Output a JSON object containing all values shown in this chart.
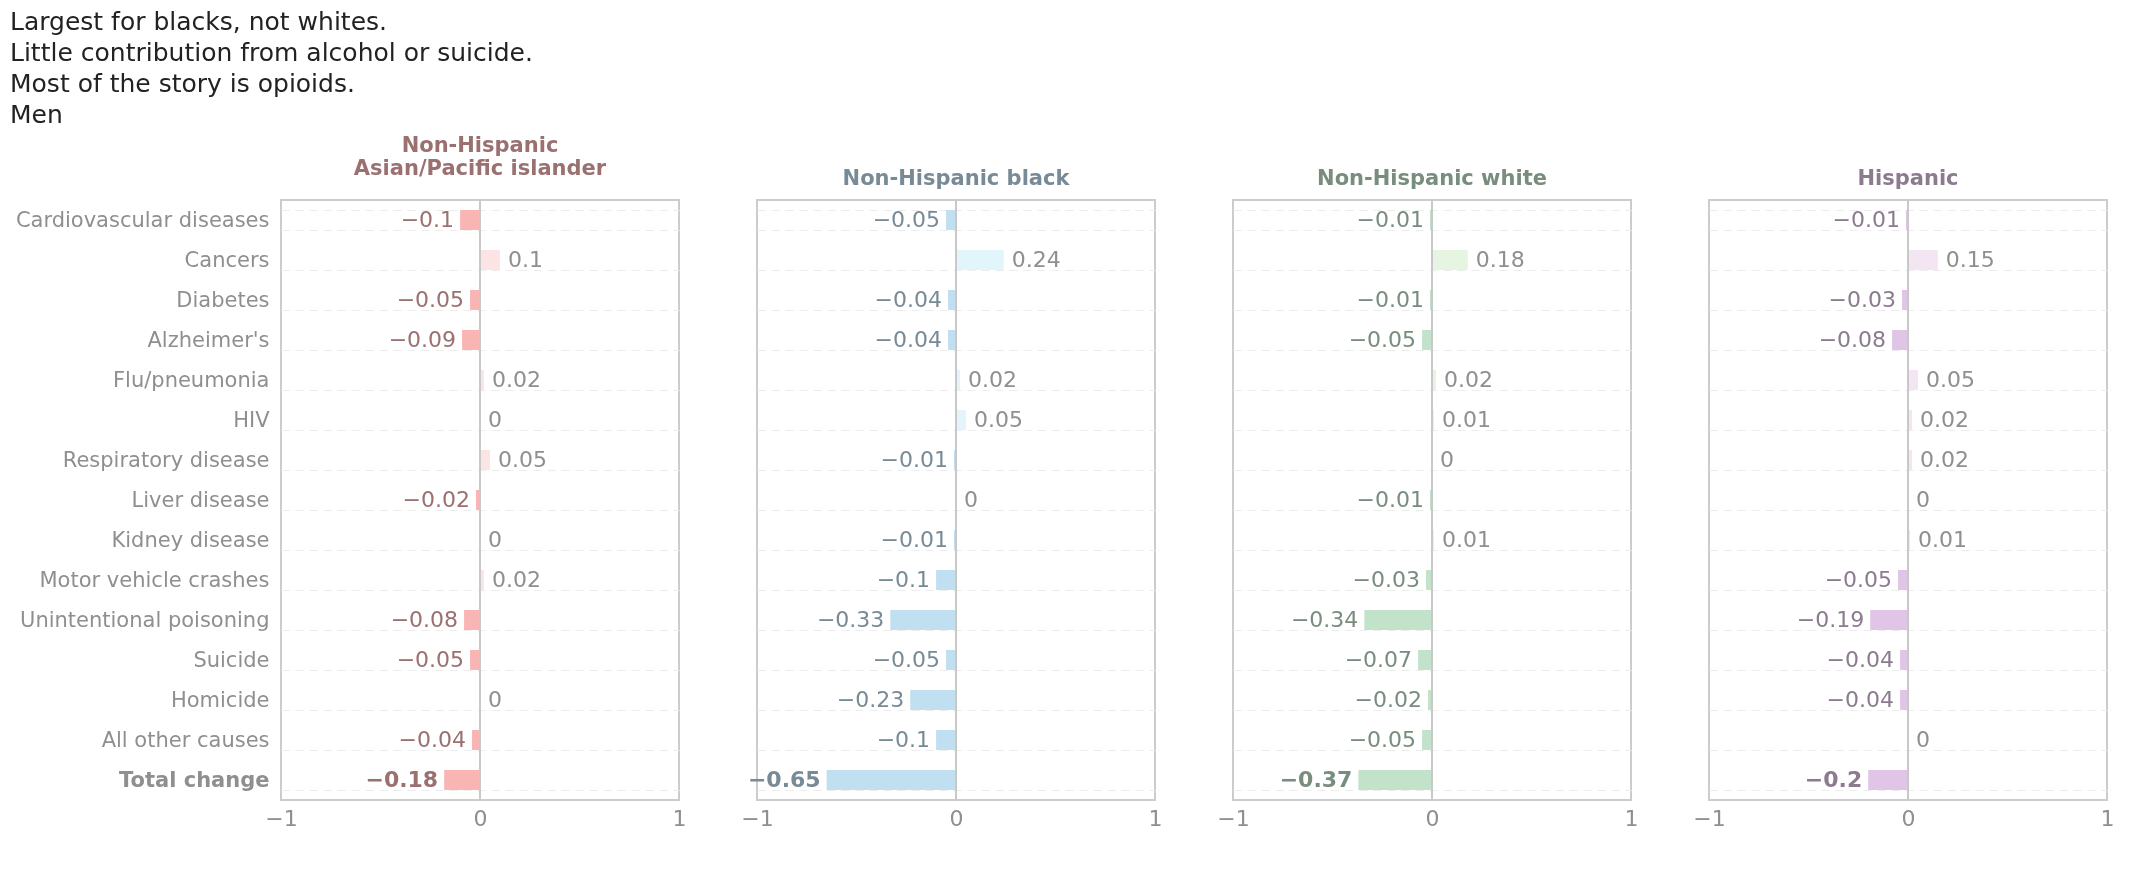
{
  "chart_data": [
    {
      "type": "bar",
      "orientation": "horizontal",
      "title": "Non-Hispanic Asian/Pacific islander",
      "annotations": [
        "Largest for blacks, not whites.",
        "Little contribution from alcohol or suicide.",
        "Most of the story is opioids.",
        "Men"
      ],
      "categories": [
        "Cardiovascular diseases",
        "Cancers",
        "Diabetes",
        "Alzheimer's",
        "Flu/pneumonia",
        "HIV",
        "Respiratory disease",
        "Liver disease",
        "Kidney disease",
        "Motor vehicle crashes",
        "Unintentional poisoning",
        "Suicide",
        "Homicide",
        "All other causes",
        "Total change"
      ],
      "values": [
        -0.1,
        0.1,
        -0.05,
        -0.09,
        0.02,
        0,
        0.05,
        -0.02,
        0,
        0.02,
        -0.08,
        -0.05,
        0,
        -0.04,
        -0.18
      ],
      "color": "#f9b4b4",
      "colors": [
        "#f9b4b4",
        "#fde4e4",
        "#f9b4b4",
        "#f9b4b4",
        "#fde4e4",
        "#fde4e4",
        "#fde4e4",
        "#f9b4b4",
        "#fde4e4",
        "#fde4e4",
        "#f9b4b4",
        "#f9b4b4",
        "#fde4e4",
        "#f9b4b4",
        "#f9b4b4"
      ],
      "xlim": [
        -1,
        1
      ],
      "xticks": [
        -1,
        0,
        1
      ],
      "data_labels": true,
      "grid": "y",
      "ref_lines": [
        {
          "axis": "x",
          "value": 0
        }
      ]
    },
    {
      "type": "bar",
      "orientation": "horizontal",
      "title": "Non-Hispanic black",
      "tick_labels": "x",
      "categories": [
        null,
        null,
        null,
        null,
        null,
        null,
        null,
        null,
        null,
        null,
        null,
        null,
        null,
        null,
        null
      ],
      "values": [
        -0.05,
        0.24,
        -0.04,
        -0.04,
        0.02,
        0.05,
        -0.01,
        0,
        -0.01,
        -0.1,
        -0.33,
        -0.05,
        -0.23,
        -0.1,
        -0.65
      ],
      "color": "#c0dff0",
      "colors": [
        "#c0dff0",
        "#e2f5fa",
        "#c0dff0",
        "#c0dff0",
        "#e2f5fa",
        "#e2f5fa",
        "#c0dff0",
        "#e2f5fa",
        "#c0dff0",
        "#c0dff0",
        "#c0dff0",
        "#c0dff0",
        "#c0dff0",
        "#c0dff0",
        "#c0dff0"
      ],
      "xlim": [
        -1,
        1
      ],
      "xticks": [
        -1,
        0,
        1
      ],
      "data_labels": true,
      "grid": "y",
      "ref_lines": [
        {
          "axis": "x",
          "value": 0
        }
      ]
    },
    {
      "type": "bar",
      "orientation": "horizontal",
      "title": "Non-Hispanic white",
      "tick_labels": "x",
      "categories": [
        null,
        null,
        null,
        null,
        null,
        null,
        null,
        null,
        null,
        null,
        null,
        null,
        null,
        null,
        null
      ],
      "values": [
        -0.01,
        0.18,
        -0.01,
        -0.05,
        0.02,
        0.01,
        0,
        -0.01,
        0.01,
        -0.03,
        -0.34,
        -0.07,
        -0.02,
        -0.05,
        -0.37
      ],
      "color": "#c2e3c9",
      "colors": [
        "#c2e3c9",
        "#e6f5e1",
        "#c2e3c9",
        "#c2e3c9",
        "#e6f5e1",
        "#e6f5e1",
        "#e6f5e1",
        "#c2e3c9",
        "#e6f5e1",
        "#c2e3c9",
        "#c2e3c9",
        "#c2e3c9",
        "#c2e3c9",
        "#c2e3c9",
        "#c2e3c9"
      ],
      "xlim": [
        -1,
        1
      ],
      "xticks": [
        -1,
        0,
        1
      ],
      "data_labels": true,
      "grid": "y",
      "ref_lines": [
        {
          "axis": "x",
          "value": 0
        }
      ]
    },
    {
      "type": "bar",
      "orientation": "horizontal",
      "title": "Hispanic",
      "tick_labels": "x",
      "categories": [
        null,
        null,
        null,
        null,
        null,
        null,
        null,
        null,
        null,
        null,
        null,
        null,
        null,
        null,
        null
      ],
      "values": [
        -0.01,
        0.15,
        -0.03,
        -0.08,
        0.05,
        0.02,
        0.02,
        0,
        0.01,
        -0.05,
        -0.19,
        -0.04,
        -0.04,
        0,
        -0.2
      ],
      "color": "#e1c5e6",
      "colors": [
        "#e1c5e6",
        "#f3e5f2",
        "#e1c5e6",
        "#e1c5e6",
        "#f3e5f2",
        "#f3e5f2",
        "#f3e5f2",
        "#f3e5f2",
        "#f3e5f2",
        "#e1c5e6",
        "#e1c5e6",
        "#e1c5e6",
        "#e1c5e6",
        "#f3e5f2",
        "#e1c5e6"
      ],
      "xlim": [
        -1,
        1
      ],
      "xticks": [
        -1,
        0,
        1
      ],
      "data_labels": true,
      "grid": "y",
      "ref_lines": [
        {
          "axis": "x",
          "value": 0
        }
      ]
    }
  ]
}
